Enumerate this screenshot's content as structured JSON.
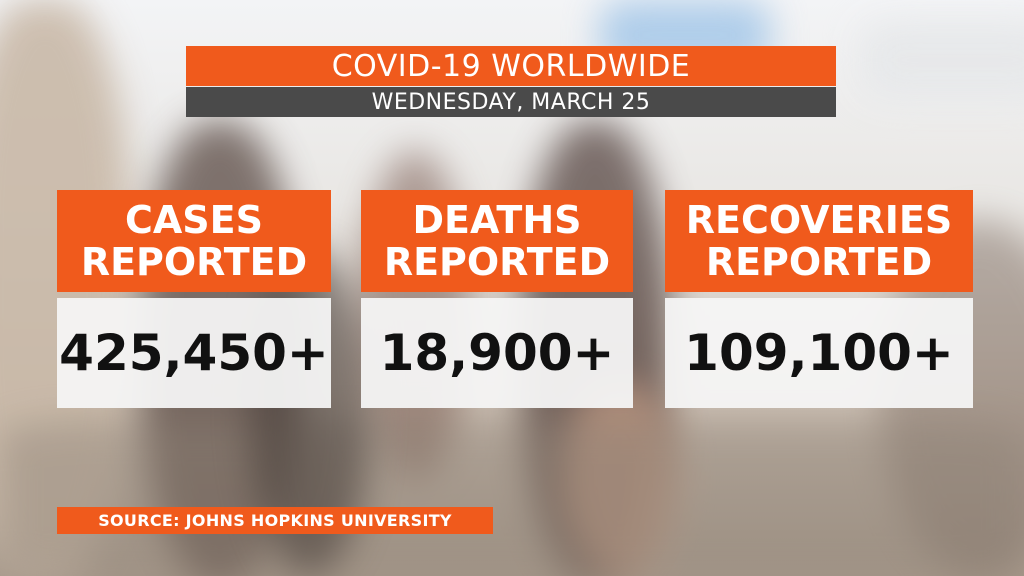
{
  "header": {
    "title": "COVID-19 WORLDWIDE",
    "date": "WEDNESDAY, MARCH 25"
  },
  "stats": [
    {
      "line1": "CASES",
      "line2": "REPORTED",
      "value": "425,450+"
    },
    {
      "line1": "DEATHS",
      "line2": "REPORTED",
      "value": "18,900+"
    },
    {
      "line1": "RECOVERIES",
      "line2": "REPORTED",
      "value": "109,100+"
    }
  ],
  "source": "SOURCE: JOHNS HOPKINS UNIVERSITY",
  "colors": {
    "accent": "#f05a1c",
    "date_bar": "#4a4a4a",
    "value_bg": "#f5f5f5"
  }
}
